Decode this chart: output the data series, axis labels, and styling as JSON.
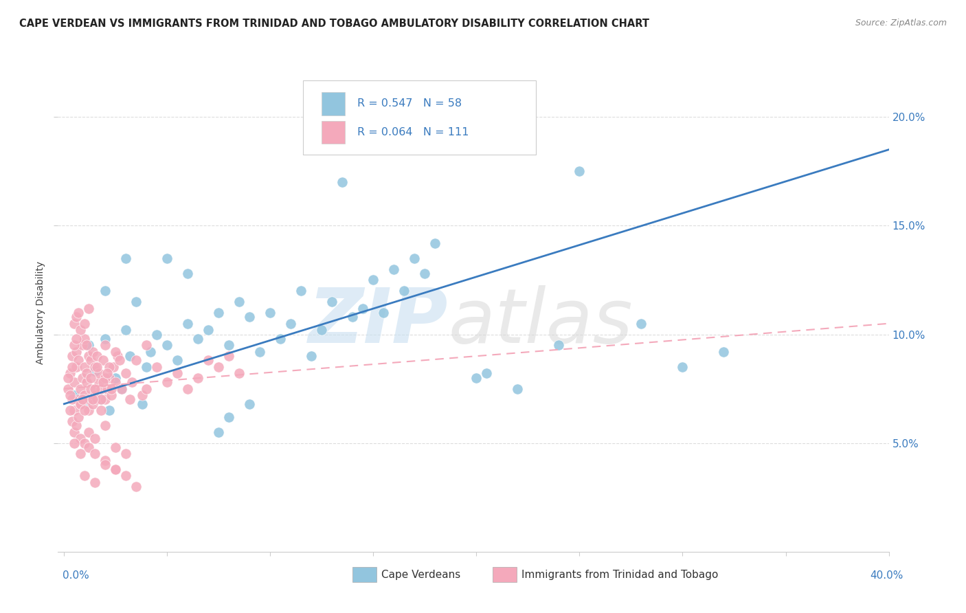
{
  "title": "CAPE VERDEAN VS IMMIGRANTS FROM TRINIDAD AND TOBAGO AMBULATORY DISABILITY CORRELATION CHART",
  "source": "Source: ZipAtlas.com",
  "ylabel": "Ambulatory Disability",
  "legend_label1": "Cape Verdeans",
  "legend_label2": "Immigrants from Trinidad and Tobago",
  "r1": "0.547",
  "n1": "58",
  "r2": "0.064",
  "n2": "111",
  "color_blue": "#92c5de",
  "color_pink": "#f4a9bb",
  "color_blue_dark": "#3a7bbf",
  "color_blue_text": "#3a7bbf",
  "watermark_zip_color": "#c8dff0",
  "watermark_atlas_color": "#d8d8d8",
  "blue_scatter_x": [
    0.5,
    1.0,
    1.2,
    1.5,
    1.8,
    2.0,
    2.2,
    2.5,
    2.8,
    3.0,
    3.2,
    3.5,
    3.8,
    4.0,
    4.2,
    4.5,
    5.0,
    5.5,
    6.0,
    6.5,
    7.0,
    7.5,
    8.0,
    8.5,
    9.0,
    9.5,
    10.0,
    10.5,
    11.0,
    11.5,
    12.0,
    12.5,
    13.0,
    13.5,
    14.0,
    14.5,
    15.0,
    15.5,
    16.0,
    16.5,
    17.0,
    17.5,
    18.0,
    20.0,
    20.5,
    22.0,
    24.0,
    25.0,
    28.0,
    30.0,
    32.0,
    5.0,
    6.0,
    7.5,
    8.0,
    9.0,
    2.0,
    3.0
  ],
  "blue_scatter_y": [
    7.2,
    6.8,
    9.5,
    8.3,
    7.0,
    9.8,
    6.5,
    8.0,
    7.5,
    10.2,
    9.0,
    11.5,
    6.8,
    8.5,
    9.2,
    10.0,
    9.5,
    8.8,
    10.5,
    9.8,
    10.2,
    11.0,
    9.5,
    11.5,
    10.8,
    9.2,
    11.0,
    9.8,
    10.5,
    12.0,
    9.0,
    10.2,
    11.5,
    17.0,
    10.8,
    11.2,
    12.5,
    11.0,
    13.0,
    12.0,
    13.5,
    12.8,
    14.2,
    8.0,
    8.2,
    7.5,
    9.5,
    17.5,
    10.5,
    8.5,
    9.2,
    13.5,
    12.8,
    5.5,
    6.2,
    6.8,
    12.0,
    13.5
  ],
  "pink_scatter_x": [
    0.2,
    0.3,
    0.4,
    0.5,
    0.5,
    0.6,
    0.6,
    0.7,
    0.7,
    0.8,
    0.8,
    0.9,
    0.9,
    1.0,
    1.0,
    1.0,
    1.1,
    1.1,
    1.2,
    1.2,
    1.2,
    1.3,
    1.3,
    1.4,
    1.4,
    1.5,
    1.5,
    1.6,
    1.6,
    1.7,
    1.7,
    1.8,
    1.8,
    1.9,
    2.0,
    2.0,
    2.1,
    2.2,
    2.3,
    2.4,
    2.5,
    2.6,
    2.8,
    3.0,
    3.2,
    3.5,
    3.8,
    4.0,
    0.5,
    0.6,
    0.7,
    0.8,
    1.0,
    1.2,
    0.4,
    0.5,
    0.6,
    0.8,
    1.0,
    1.2,
    1.5,
    2.0,
    2.5,
    3.0,
    3.5,
    0.3,
    0.4,
    0.5,
    0.6,
    0.7,
    0.8,
    1.0,
    1.5,
    2.0,
    2.5,
    1.8,
    2.2,
    0.9,
    1.1,
    1.3,
    4.5,
    5.0,
    5.5,
    6.0,
    6.5,
    7.0,
    7.5,
    8.0,
    8.5,
    0.2,
    0.3,
    0.4,
    1.4,
    1.6,
    1.9,
    2.1,
    2.3,
    2.7,
    3.3,
    4.0,
    0.5,
    0.8,
    1.2,
    1.5,
    2.0,
    2.5,
    1.0,
    1.5,
    2.0,
    2.5,
    3.0
  ],
  "pink_scatter_y": [
    7.5,
    8.2,
    9.0,
    6.5,
    7.8,
    8.5,
    9.2,
    7.0,
    8.8,
    6.8,
    7.5,
    8.0,
    9.5,
    7.2,
    8.5,
    9.8,
    7.8,
    8.2,
    6.5,
    7.0,
    9.0,
    7.5,
    8.8,
    6.8,
    9.2,
    7.2,
    8.5,
    7.0,
    9.0,
    7.8,
    8.2,
    6.5,
    7.5,
    8.8,
    7.0,
    9.5,
    7.5,
    8.0,
    7.2,
    8.5,
    7.8,
    9.0,
    7.5,
    8.2,
    7.0,
    8.8,
    7.2,
    9.5,
    10.5,
    10.8,
    11.0,
    10.2,
    10.5,
    11.2,
    6.0,
    5.5,
    5.8,
    5.2,
    5.0,
    4.8,
    4.5,
    4.2,
    3.8,
    3.5,
    3.0,
    6.5,
    7.0,
    9.5,
    9.8,
    6.2,
    6.8,
    6.5,
    7.5,
    8.0,
    9.2,
    7.0,
    8.5,
    7.0,
    9.5,
    8.0,
    8.5,
    7.8,
    8.2,
    7.5,
    8.0,
    8.8,
    8.5,
    9.0,
    8.2,
    8.0,
    7.2,
    8.5,
    7.0,
    8.5,
    7.8,
    8.2,
    7.5,
    8.8,
    7.8,
    7.5,
    5.0,
    4.5,
    5.5,
    5.2,
    5.8,
    4.8,
    3.5,
    3.2,
    4.0,
    3.8,
    4.5
  ],
  "blue_trend_x": [
    0,
    40
  ],
  "blue_trend_y": [
    6.8,
    18.5
  ],
  "pink_trend_x": [
    0,
    40
  ],
  "pink_trend_y": [
    7.5,
    10.5
  ],
  "xlim": [
    -0.3,
    40
  ],
  "ylim": [
    0,
    22
  ],
  "ytick_vals": [
    5.0,
    10.0,
    15.0,
    20.0
  ],
  "xtick_vals": [
    0,
    5,
    10,
    15,
    20,
    25,
    30,
    35,
    40
  ],
  "background_color": "#ffffff",
  "grid_color": "#dddddd",
  "spine_color": "#cccccc"
}
